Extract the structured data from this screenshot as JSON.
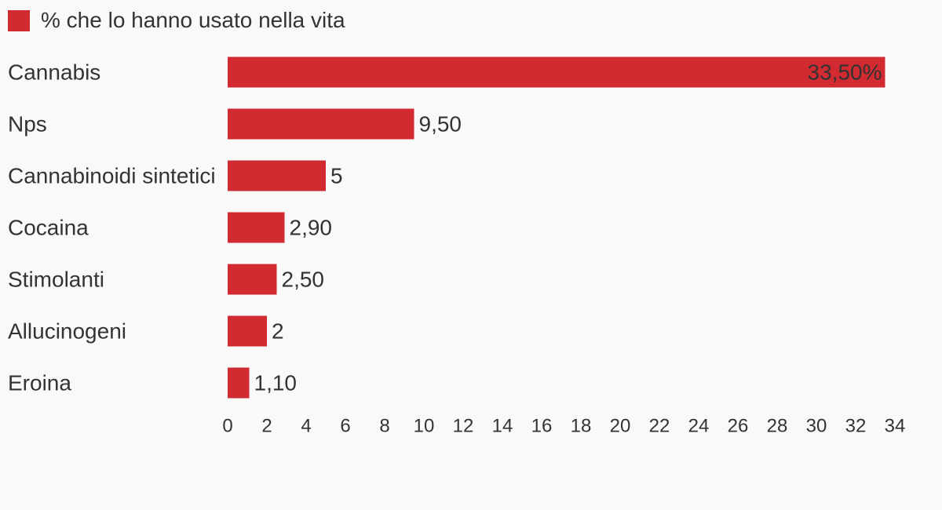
{
  "chart_data": {
    "type": "bar",
    "orientation": "horizontal",
    "categories": [
      "Cannabis",
      "Nps",
      "Cannabinoidi sintetici",
      "Cocaina",
      "Stimolanti",
      "Allucinogeni",
      "Eroina"
    ],
    "series": [
      {
        "name": "% che lo hanno usato nella vita",
        "values": [
          33.5,
          9.5,
          5,
          2.9,
          2.5,
          2,
          1.1
        ],
        "labels": [
          "33,50%",
          "9,50",
          "5",
          "2,90",
          "2,50",
          "2",
          "1,10"
        ],
        "color": "#d12b31"
      }
    ],
    "xlim": [
      0,
      34
    ],
    "xticks": [
      0,
      2,
      4,
      6,
      8,
      10,
      12,
      14,
      16,
      18,
      20,
      22,
      24,
      26,
      28,
      30,
      32,
      34
    ],
    "grid": false,
    "legend_placement": "top-left",
    "title": "",
    "xlabel": "",
    "ylabel": ""
  },
  "colors": {
    "background": "#f9f9f9",
    "text": "#333333",
    "bar": "#d12b31"
  }
}
